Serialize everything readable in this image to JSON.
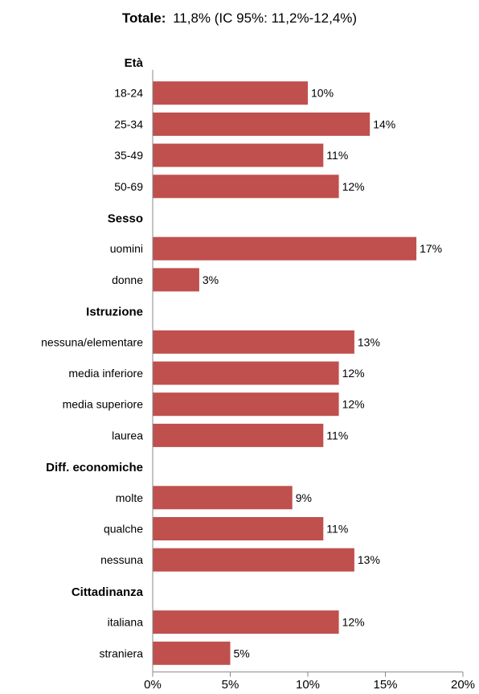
{
  "chart_data": {
    "type": "bar",
    "orientation": "horizontal",
    "title_label": "Totale:",
    "title_value": "11,8% (IC 95%: 11,2%-12,4%)",
    "bar_color": "#c0504d",
    "xlim": [
      0,
      20
    ],
    "x_ticks": [
      "0%",
      "5%",
      "10%",
      "15%",
      "20%"
    ],
    "grid": false,
    "groups": [
      {
        "name": "Età",
        "items": [
          {
            "label": "18-24",
            "value": 10,
            "value_label": "10%"
          },
          {
            "label": "25-34",
            "value": 14,
            "value_label": "14%"
          },
          {
            "label": "35-49",
            "value": 11,
            "value_label": "11%"
          },
          {
            "label": "50-69",
            "value": 12,
            "value_label": "12%"
          }
        ]
      },
      {
        "name": "Sesso",
        "items": [
          {
            "label": "uomini",
            "value": 17,
            "value_label": "17%"
          },
          {
            "label": "donne",
            "value": 3,
            "value_label": "3%"
          }
        ]
      },
      {
        "name": "Istruzione",
        "items": [
          {
            "label": "nessuna/elementare",
            "value": 13,
            "value_label": "13%"
          },
          {
            "label": "media inferiore",
            "value": 12,
            "value_label": "12%"
          },
          {
            "label": "media superiore",
            "value": 12,
            "value_label": "12%"
          },
          {
            "label": "laurea",
            "value": 11,
            "value_label": "11%"
          }
        ]
      },
      {
        "name": "Diff. economiche",
        "items": [
          {
            "label": "molte",
            "value": 9,
            "value_label": "9%"
          },
          {
            "label": "qualche",
            "value": 11,
            "value_label": "11%"
          },
          {
            "label": "nessuna",
            "value": 13,
            "value_label": "13%"
          }
        ]
      },
      {
        "name": "Cittadinanza",
        "items": [
          {
            "label": "italiana",
            "value": 12,
            "value_label": "12%"
          },
          {
            "label": "straniera",
            "value": 5,
            "value_label": "5%"
          }
        ]
      }
    ]
  }
}
